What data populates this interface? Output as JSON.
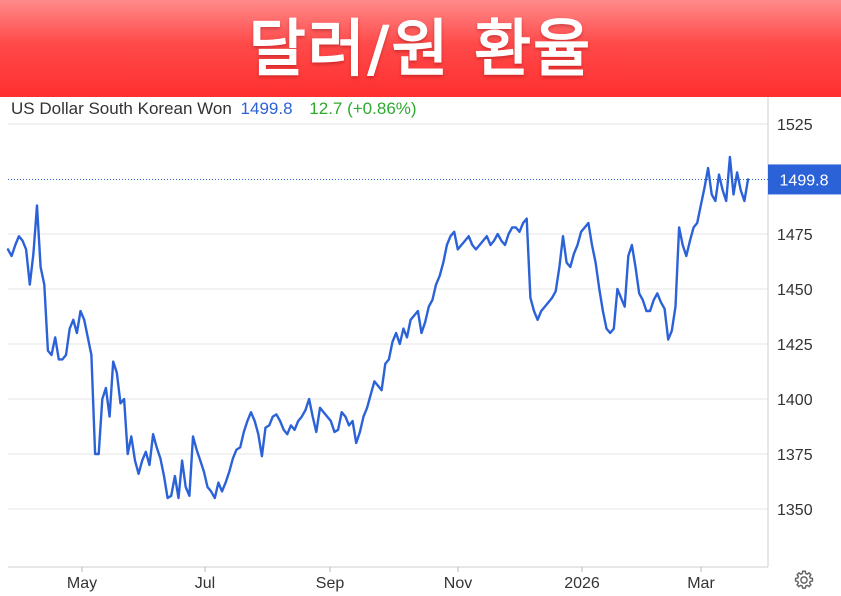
{
  "banner": {
    "title": "달러/원 환율"
  },
  "quote": {
    "name": "US Dollar South Korean Won",
    "price": "1499.8",
    "change": "12.7 (+0.86%)"
  },
  "colors": {
    "line": "#2c62d8",
    "change_up": "#2eaa2e",
    "banner": "#ff3c3c",
    "grid": "#e6e6e6"
  },
  "icons": {
    "settings": "gear-icon"
  },
  "chart_data": {
    "type": "line",
    "title": "",
    "xlabel": "",
    "ylabel": "",
    "x_ticks": [
      "May",
      "Jul",
      "Sep",
      "Nov",
      "2026",
      "Mar"
    ],
    "y_ticks": [
      1350,
      1375,
      1400,
      1425,
      1450,
      1475,
      1525
    ],
    "ylim": [
      1325,
      1525
    ],
    "last_value_label": "1499.8",
    "last_value": 1499.8,
    "grid": "horizontal",
    "series": [
      {
        "values": [
          1468,
          1465,
          1470,
          1474,
          1472,
          1468,
          1452,
          1466,
          1488,
          1460,
          1452,
          1422,
          1420,
          1428,
          1418,
          1418,
          1420,
          1432,
          1436,
          1430,
          1440,
          1436,
          1428,
          1420,
          1375,
          1375,
          1400,
          1405,
          1392,
          1417,
          1412,
          1398,
          1400,
          1375,
          1383,
          1372,
          1366,
          1372,
          1376,
          1370,
          1384,
          1378,
          1373,
          1365,
          1355,
          1356,
          1365,
          1355,
          1372,
          1360,
          1356,
          1383,
          1377,
          1372,
          1367,
          1360,
          1358,
          1355,
          1362,
          1358,
          1362,
          1367,
          1373,
          1377,
          1378,
          1385,
          1390,
          1394,
          1390,
          1384,
          1374,
          1387,
          1388,
          1392,
          1393,
          1390,
          1386,
          1384,
          1388,
          1386,
          1390,
          1392,
          1395,
          1400,
          1392,
          1385,
          1396,
          1394,
          1392,
          1390,
          1385,
          1386,
          1394,
          1392,
          1388,
          1390,
          1380,
          1385,
          1392,
          1396,
          1402,
          1408,
          1406,
          1404,
          1416,
          1418,
          1426,
          1430,
          1425,
          1432,
          1428,
          1436,
          1438,
          1440,
          1430,
          1435,
          1442,
          1445,
          1452,
          1456,
          1462,
          1470,
          1474,
          1476,
          1468,
          1470,
          1472,
          1474,
          1470,
          1468,
          1470,
          1472,
          1474,
          1470,
          1472,
          1475,
          1472,
          1470,
          1475,
          1478,
          1478,
          1476,
          1480,
          1482,
          1446,
          1440,
          1436,
          1440,
          1442,
          1444,
          1446,
          1449,
          1460,
          1474,
          1462,
          1460,
          1466,
          1470,
          1476,
          1478,
          1480,
          1470,
          1462,
          1450,
          1440,
          1432,
          1430,
          1432,
          1450,
          1446,
          1442,
          1465,
          1470,
          1460,
          1448,
          1445,
          1440,
          1440,
          1445,
          1448,
          1444,
          1441,
          1427,
          1431,
          1442,
          1478,
          1470,
          1465,
          1472,
          1478,
          1480,
          1488,
          1496,
          1505,
          1493,
          1490,
          1502,
          1495,
          1490,
          1510,
          1493,
          1503,
          1495,
          1490,
          1499.8
        ]
      }
    ]
  }
}
